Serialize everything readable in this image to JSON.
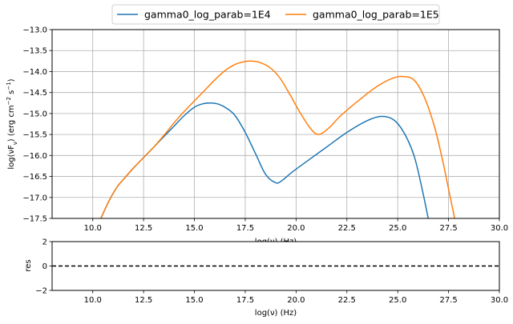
{
  "chart_data": [
    {
      "type": "line",
      "xlabel": "log(ν)  (Hz)",
      "ylabel_parts": [
        "log(νF",
        "ν",
        ")  (erg cm",
        "−2",
        "  s",
        "−1",
        ")"
      ],
      "xlim": [
        8.0,
        30.0
      ],
      "ylim": [
        -17.5,
        -13.0
      ],
      "xticks": [
        10.0,
        12.5,
        15.0,
        17.5,
        20.0,
        22.5,
        25.0,
        27.5,
        30.0
      ],
      "yticks": [
        -17.5,
        -17.0,
        -16.5,
        -16.0,
        -15.5,
        -15.0,
        -14.5,
        -14.0,
        -13.5,
        -13.0
      ],
      "grid": true,
      "legend_position": "top-center",
      "series": [
        {
          "name": "gamma0_log_parab=1E4",
          "color": "#1f77b4",
          "x": [
            10.4,
            10.8,
            11.2,
            11.6,
            12.0,
            12.5,
            13.0,
            13.5,
            14.0,
            14.5,
            15.0,
            15.4,
            15.8,
            16.2,
            16.6,
            17.0,
            17.5,
            18.0,
            18.5,
            19.0,
            19.3,
            19.8,
            20.5,
            21.5,
            22.5,
            23.5,
            24.2,
            24.8,
            25.3,
            25.8,
            26.2,
            26.5
          ],
          "y": [
            -17.5,
            -17.08,
            -16.75,
            -16.52,
            -16.3,
            -16.05,
            -15.8,
            -15.55,
            -15.3,
            -15.05,
            -14.85,
            -14.77,
            -14.75,
            -14.78,
            -14.88,
            -15.05,
            -15.45,
            -15.95,
            -16.45,
            -16.65,
            -16.6,
            -16.4,
            -16.15,
            -15.8,
            -15.45,
            -15.17,
            -15.07,
            -15.15,
            -15.45,
            -16.0,
            -16.8,
            -17.5
          ]
        },
        {
          "name": "gamma0_log_parab=1E5",
          "color": "#ff7f0e",
          "x": [
            10.4,
            10.8,
            11.2,
            11.6,
            12.0,
            12.5,
            13.0,
            13.5,
            14.0,
            14.5,
            15.0,
            15.5,
            16.0,
            16.5,
            17.0,
            17.5,
            17.8,
            18.2,
            18.7,
            19.2,
            19.7,
            20.2,
            20.7,
            21.1,
            21.6,
            22.2,
            23.0,
            24.0,
            24.8,
            25.3,
            25.8,
            26.3,
            26.8,
            27.2,
            27.5,
            27.8
          ],
          "y": [
            -17.5,
            -17.08,
            -16.75,
            -16.52,
            -16.3,
            -16.05,
            -15.8,
            -15.52,
            -15.22,
            -14.95,
            -14.7,
            -14.45,
            -14.2,
            -13.98,
            -13.83,
            -13.76,
            -13.75,
            -13.78,
            -13.9,
            -14.15,
            -14.55,
            -14.98,
            -15.35,
            -15.5,
            -15.35,
            -15.05,
            -14.72,
            -14.35,
            -14.15,
            -14.12,
            -14.2,
            -14.6,
            -15.3,
            -16.1,
            -16.8,
            -17.5
          ]
        }
      ]
    },
    {
      "type": "line",
      "xlabel": "log(ν)  (Hz)",
      "ylabel": "res",
      "xlim": [
        8.0,
        30.0
      ],
      "ylim": [
        -2,
        2
      ],
      "xticks": [
        10.0,
        12.5,
        15.0,
        17.5,
        20.0,
        22.5,
        25.0,
        27.5,
        30.0
      ],
      "yticks": [
        -2,
        0,
        2
      ],
      "grid": false,
      "reference_line": {
        "y": 0,
        "style": "dashed",
        "color": "#000000"
      }
    }
  ]
}
